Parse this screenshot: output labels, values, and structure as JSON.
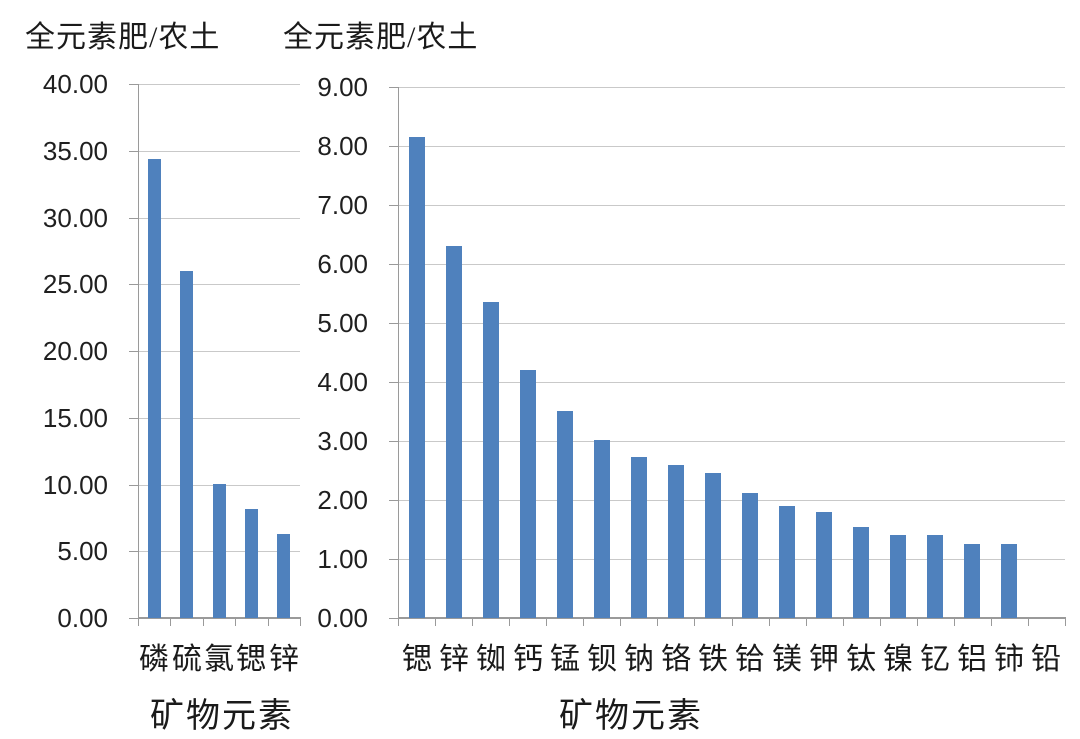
{
  "figure": {
    "background": "#ffffff",
    "bar_color": "#4f81bd",
    "gridline_color": "#c9c9c9",
    "axis_color": "#9a9a9a",
    "text_color": "#1a1a1a"
  },
  "chart_data": [
    {
      "type": "bar",
      "title": "全元素肥/农土",
      "xlabel": "矿物元素",
      "ylabel": "",
      "legend": "none",
      "grid": true,
      "categories": [
        "磷",
        "硫",
        "氯",
        "锶",
        "锌"
      ],
      "values": [
        34.4,
        26.0,
        10.0,
        8.15,
        6.3
      ],
      "ylim": [
        0,
        40
      ],
      "ytick_interval": 5,
      "ytick_labels": [
        "0.00",
        "5.00",
        "10.00",
        "15.00",
        "20.00",
        "25.00",
        "30.00",
        "35.00",
        "40.00"
      ],
      "bar_color": "#4f81bd"
    },
    {
      "type": "bar",
      "title": "全元素肥/农土",
      "xlabel": "矿物元素",
      "ylabel": "",
      "legend": "none",
      "grid": true,
      "categories": [
        "锶",
        "锌",
        "铷",
        "钙",
        "锰",
        "钡",
        "钠",
        "铬",
        "铁",
        "铪",
        "镁",
        "钾",
        "钛",
        "镍",
        "钇",
        "铝",
        "铈",
        "铅"
      ],
      "values": [
        8.15,
        6.3,
        5.35,
        4.2,
        3.5,
        3.02,
        2.73,
        2.6,
        2.45,
        2.12,
        1.9,
        1.8,
        1.55,
        1.4,
        1.4,
        1.25,
        1.26,
        0.0
      ],
      "ylim": [
        0,
        9
      ],
      "ytick_interval": 1,
      "ytick_labels": [
        "0.00",
        "1.00",
        "2.00",
        "3.00",
        "4.00",
        "5.00",
        "6.00",
        "7.00",
        "8.00",
        "9.00"
      ],
      "bar_color": "#4f81bd"
    }
  ]
}
